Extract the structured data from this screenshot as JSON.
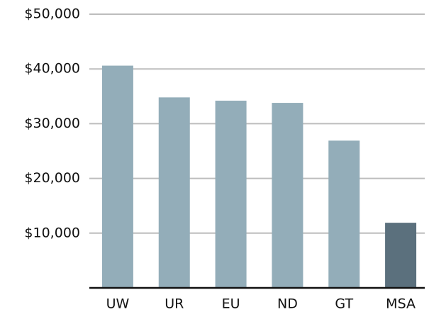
{
  "chart_data": {
    "type": "bar",
    "categories": [
      "UW",
      "UR",
      "EU",
      "ND",
      "GT",
      "MSA"
    ],
    "values": [
      40600,
      34800,
      34200,
      33800,
      26900,
      11900
    ],
    "colors": [
      "#93adb9",
      "#93adb9",
      "#93adb9",
      "#93adb9",
      "#93adb9",
      "#5b707d"
    ],
    "ylim": [
      0,
      50000
    ],
    "yticks": [
      {
        "value": 10000,
        "label": "$10,000"
      },
      {
        "value": 20000,
        "label": "$20,000"
      },
      {
        "value": 30000,
        "label": "$30,000"
      },
      {
        "value": 40000,
        "label": "$40,000"
      },
      {
        "value": 50000,
        "label": "$50,000"
      }
    ],
    "grid": true
  }
}
